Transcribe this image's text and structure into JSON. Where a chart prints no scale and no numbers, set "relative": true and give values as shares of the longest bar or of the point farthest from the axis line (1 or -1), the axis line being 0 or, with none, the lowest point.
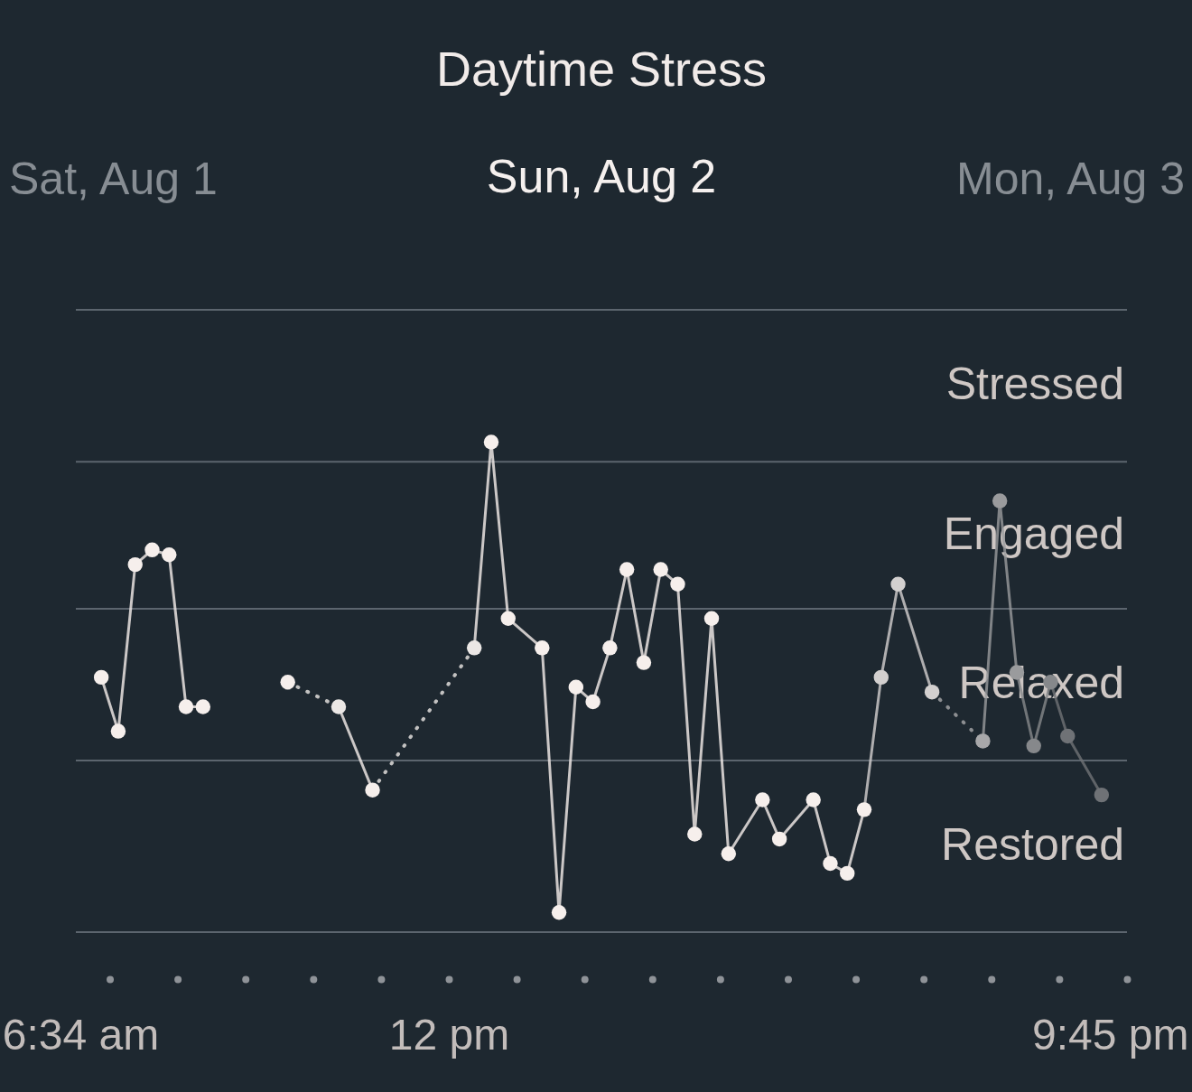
{
  "chart_data": {
    "type": "line",
    "title": "Daytime Stress",
    "subtitle": "Sun, Aug 2",
    "annotations": [
      "Sat, Aug 1",
      "Mon, Aug 3",
      "Stressed",
      "Engaged",
      "Relaxed",
      "Restored"
    ],
    "relative": true,
    "xlim": [
      6.5,
      22
    ],
    "xticks": [
      {
        "value": 6.5667,
        "label": "6:34 am"
      },
      {
        "value": 12,
        "label": "12 pm"
      },
      {
        "value": 21.75,
        "label": "9:45 pm"
      }
    ],
    "ref_lines": [
      {
        "axis": "y",
        "value": 0,
        "color": "#5c656e"
      },
      {
        "axis": "y",
        "value": 0.35,
        "color": "#5c656e"
      },
      {
        "axis": "y",
        "value": 0.66,
        "color": "#5c656e"
      },
      {
        "axis": "y",
        "value": 0.96,
        "color": "#5c656e"
      },
      {
        "axis": "y",
        "value": 1.27,
        "color": "#5c656e"
      }
    ],
    "marker": "circle",
    "line_style": "solid",
    "series": [
      {
        "color": "#f6efec",
        "x": [
          6.875,
          7.125,
          7.375,
          7.625,
          7.875,
          8.125,
          8.375
        ],
        "values": [
          0.52,
          0.41,
          0.75,
          0.78,
          0.77,
          0.46,
          0.46
        ]
      },
      {
        "color": "#f6efec",
        "x": [
          9.625
        ],
        "values": [
          0.51
        ]
      },
      {
        "color": "#ebe7e5",
        "line_style": "dotted",
        "x": [
          9.625,
          10.375
        ],
        "values": [
          0.51,
          0.46
        ]
      },
      {
        "color": "#f6efec",
        "x": [
          10.375,
          10.875
        ],
        "values": [
          0.46,
          0.29
        ]
      },
      {
        "color": "#ebe7e5",
        "line_style": "dotted",
        "x": [
          10.875,
          12.375
        ],
        "values": [
          0.29,
          0.58
        ]
      },
      {
        "color": "#f6efec",
        "x": [
          12.375,
          12.625,
          12.875,
          13.375,
          13.625,
          13.875,
          14.125,
          14.375,
          14.625,
          14.875,
          15.125,
          15.375,
          15.625,
          15.875,
          16.125,
          16.625,
          16.875,
          17.375,
          17.625,
          17.875,
          18.125
        ],
        "values": [
          0.58,
          1,
          0.64,
          0.58,
          0.04,
          0.5,
          0.47,
          0.58,
          0.74,
          0.55,
          0.74,
          0.71,
          0.2,
          0.64,
          0.16,
          0.27,
          0.19,
          0.27,
          0.14,
          0.12,
          0.25
        ]
      },
      {
        "color": "#d3d0cf",
        "x": [
          18.125,
          18.375,
          18.625,
          19.125
        ],
        "values": [
          0.25,
          0.52,
          0.71,
          0.49
        ]
      },
      {
        "color": "#a8a8aa",
        "line_style": "dotted",
        "x": [
          19.125,
          19.875
        ],
        "values": [
          0.49,
          0.39
        ]
      },
      {
        "color": "#9a9b9d",
        "x": [
          19.875,
          20.125,
          20.375
        ],
        "values": [
          0.39,
          0.88,
          0.53
        ]
      },
      {
        "color": "#86888b",
        "x": [
          20.375,
          20.625,
          20.875
        ],
        "values": [
          0.53,
          0.38,
          0.51
        ]
      },
      {
        "color": "#6f7276",
        "x": [
          20.875,
          21.125,
          21.625
        ],
        "values": [
          0.51,
          0.4,
          0.28
        ]
      }
    ]
  }
}
